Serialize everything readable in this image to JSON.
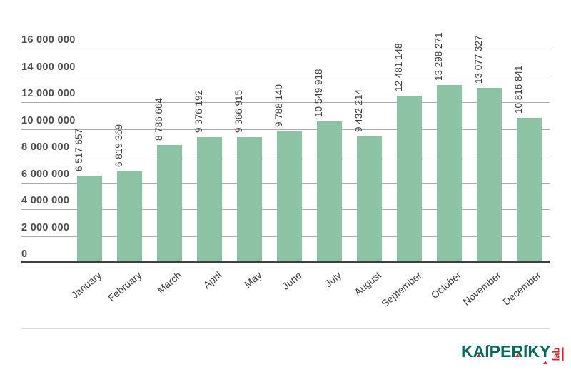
{
  "chart_data": {
    "type": "bar",
    "title": "",
    "xlabel": "",
    "ylabel": "",
    "categories": [
      "January",
      "February",
      "March",
      "April",
      "May",
      "June",
      "July",
      "August",
      "September",
      "October",
      "November",
      "December"
    ],
    "values": [
      6517657,
      6819369,
      8786664,
      9376192,
      9366915,
      9788140,
      10549918,
      9432214,
      12481148,
      13298271,
      13077327,
      10816841
    ],
    "value_labels": [
      "6 517 657",
      "6 819 369",
      "8 786 664",
      "9 376 192",
      "9 366 915",
      "9 788 140",
      "10 549 918",
      "9 432 214",
      "12 481 148",
      "13 298 271",
      "13 077 327",
      "10 816 841"
    ],
    "ylim": [
      0,
      16000000
    ],
    "ytick_step": 2000000,
    "ytick_labels": [
      "0",
      "2 000 000",
      "4 000 000",
      "6 000 000",
      "8 000 000",
      "10 000 000",
      "12 000 000",
      "14 000 000",
      "16 000 000"
    ],
    "grid": true,
    "legend": "none",
    "bar_color": "#8cc3a4",
    "gridline_color": "#ababab",
    "axis_color": "#3f3f3f",
    "value_label_color": "#3d3d3d",
    "month_label_color": "#3d3d3d",
    "ytick_color": "#4d4d4d"
  },
  "logo": {
    "brand": "KAſPERſKY",
    "lab": "lab",
    "brand_color": "#00695a",
    "accent_color": "#e31e24"
  }
}
